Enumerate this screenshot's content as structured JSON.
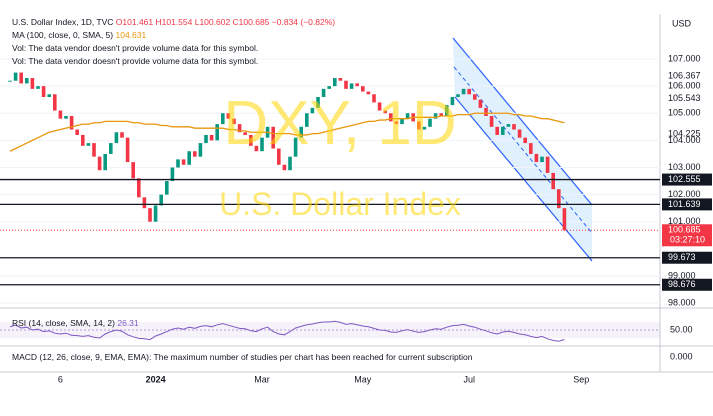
{
  "chart_data": {
    "type": "candlestick",
    "title": "U.S. Dollar Index, 1D, TVC",
    "ohlc_text": "O101.461 H101.554 L100.602 C100.685 −0.834 (−0.82%)",
    "volume_note": "Vol: The data vendor doesn't provide volume data for this symbol.",
    "watermark": "DXY, 1D",
    "watermark_subtitle": "U.S. Dollar Index",
    "currency": "USD",
    "countdown": "03:27:10",
    "up_color": "#089981",
    "down_color": "#f23645",
    "categories": [
      null,
      null,
      null,
      null,
      null,
      null,
      null,
      null,
      null,
      "6",
      null,
      null,
      null,
      null,
      null,
      null,
      null,
      null,
      null,
      null,
      null,
      null,
      null,
      null,
      null,
      null,
      "2024",
      null,
      null,
      null,
      null,
      null,
      null,
      null,
      null,
      null,
      null,
      null,
      null,
      null,
      null,
      null,
      null,
      null,
      null,
      "Mar",
      null,
      null,
      null,
      null,
      null,
      null,
      null,
      null,
      null,
      null,
      null,
      null,
      null,
      null,
      null,
      null,
      null,
      "May",
      null,
      null,
      null,
      null,
      null,
      null,
      null,
      null,
      null,
      null,
      null,
      null,
      null,
      null,
      null,
      null,
      null,
      null,
      "Jul",
      null,
      null,
      null,
      null,
      null,
      null,
      null,
      null,
      null,
      null,
      null,
      null,
      null,
      null,
      null,
      null,
      null,
      null,
      null,
      "Sep",
      null,
      null,
      null,
      null,
      null,
      null,
      null,
      null,
      null,
      null,
      null,
      null,
      null,
      null
    ],
    "values": [
      106.2,
      106.5,
      106.1,
      106.3,
      105.9,
      106.0,
      105.6,
      105.7,
      105.1,
      104.8,
      104.9,
      104.4,
      104.2,
      103.8,
      103.9,
      103.4,
      102.9,
      103.5,
      103.9,
      104.3,
      104.1,
      103.2,
      102.6,
      101.9,
      101.5,
      101.0,
      101.6,
      102.0,
      102.5,
      103.0,
      103.3,
      103.1,
      103.6,
      103.4,
      103.9,
      104.2,
      104.0,
      104.6,
      105.0,
      104.8,
      104.6,
      104.3,
      104.2,
      103.8,
      103.6,
      104.1,
      104.5,
      103.7,
      103.1,
      102.9,
      103.4,
      104.1,
      104.5,
      105.0,
      105.2,
      105.6,
      105.9,
      106.0,
      106.3,
      106.2,
      105.9,
      106.1,
      106.0,
      105.8,
      105.7,
      105.4,
      105.1,
      105.0,
      104.7,
      104.6,
      104.8,
      105.0,
      104.7,
      104.4,
      104.5,
      104.8,
      105.0,
      104.9,
      105.3,
      105.6,
      105.7,
      105.9,
      105.7,
      105.5,
      105.2,
      104.9,
      104.5,
      104.2,
      104.5,
      104.6,
      104.4,
      104.1,
      103.9,
      103.5,
      103.2,
      103.4,
      102.8,
      102.2,
      101.5,
      100.685,
      null,
      null,
      null,
      null,
      null,
      null,
      null,
      null,
      null,
      null,
      null,
      null,
      null,
      null,
      null,
      null,
      null
    ],
    "ma": {
      "name": "MA (100, close, 0, SMA, 5)",
      "value_label": "104.631",
      "color": "#e8960c",
      "values": [
        103.6,
        103.7,
        103.8,
        103.9,
        104.0,
        104.1,
        104.2,
        104.3,
        104.35,
        104.4,
        104.45,
        104.5,
        104.55,
        104.6,
        104.6,
        104.65,
        104.65,
        104.7,
        104.7,
        104.7,
        104.7,
        104.7,
        104.65,
        104.65,
        104.6,
        104.6,
        104.6,
        104.55,
        104.55,
        104.5,
        104.5,
        104.5,
        104.5,
        104.45,
        104.45,
        104.45,
        104.45,
        104.45,
        104.45,
        104.4,
        104.4,
        104.35,
        104.35,
        104.3,
        104.3,
        104.3,
        104.3,
        104.25,
        104.25,
        104.25,
        104.25,
        104.2,
        104.2,
        104.2,
        104.25,
        104.25,
        104.3,
        104.35,
        104.4,
        104.45,
        104.5,
        104.55,
        104.6,
        104.65,
        104.7,
        104.7,
        104.75,
        104.75,
        104.8,
        104.8,
        104.8,
        104.8,
        104.85,
        104.85,
        104.85,
        104.85,
        104.85,
        104.9,
        104.9,
        104.9,
        104.95,
        104.95,
        104.95,
        105.0,
        105.0,
        105.0,
        105.0,
        105.0,
        105.0,
        105.0,
        104.95,
        104.95,
        104.9,
        104.9,
        104.85,
        104.8,
        104.8,
        104.75,
        104.7,
        104.65,
        null,
        null,
        null,
        null,
        null,
        null,
        null,
        null,
        null,
        null,
        null,
        null,
        null,
        null,
        null,
        null,
        null
      ]
    },
    "ylim": [
      97.93,
      108.66
    ],
    "yticks": [
      {
        "value": 107,
        "label": "107.000"
      },
      106.367,
      {
        "value": 106,
        "label": "106.000"
      },
      105.543,
      {
        "value": 105,
        "label": "105.000"
      },
      104.225,
      {
        "value": 104,
        "label": "104.000"
      },
      {
        "value": 103,
        "label": "103.000"
      },
      {
        "value": 102,
        "label": "102.000"
      },
      {
        "value": 101,
        "label": "101.000"
      },
      {
        "value": 99,
        "label": "99.000"
      },
      {
        "value": 98,
        "label": "98.000"
      }
    ],
    "levels": [
      102.555,
      101.639,
      99.673,
      98.676
    ],
    "grid": true,
    "rsi": {
      "name": "RSI (14, close, SMA, 14, 2)",
      "color": "#7e57c2",
      "yticks": [
        {
          "value": 50,
          "label": "50.00"
        }
      ],
      "values": [
        58,
        62,
        55,
        57,
        50,
        52,
        46,
        48,
        42,
        40,
        42,
        37,
        36,
        34,
        36,
        32,
        30,
        40,
        46,
        50,
        47,
        38,
        33,
        29,
        28,
        26,
        35,
        40,
        46,
        52,
        55,
        52,
        57,
        54,
        59,
        61,
        58,
        63,
        66,
        62,
        58,
        54,
        53,
        48,
        46,
        53,
        57,
        46,
        40,
        38,
        46,
        55,
        59,
        63,
        65,
        68,
        70,
        70,
        72,
        69,
        64,
        66,
        63,
        60,
        58,
        54,
        50,
        49,
        45,
        44,
        48,
        51,
        47,
        44,
        46,
        50,
        53,
        52,
        57,
        61,
        62,
        64,
        60,
        57,
        52,
        48,
        43,
        40,
        45,
        47,
        44,
        40,
        38,
        34,
        31,
        34,
        28,
        24,
        22,
        26.31,
        null,
        null,
        null,
        null,
        null,
        null,
        null,
        null,
        null,
        null,
        null,
        null,
        null,
        null,
        null,
        null,
        null
      ]
    },
    "macd": {
      "name": "MACD (12, 26, close, 9, EMA, EMA): The maximum number of studies per chart has been reached for current subscription",
      "yticks": [
        {
          "value": 0,
          "label": "0.000"
        }
      ]
    }
  }
}
